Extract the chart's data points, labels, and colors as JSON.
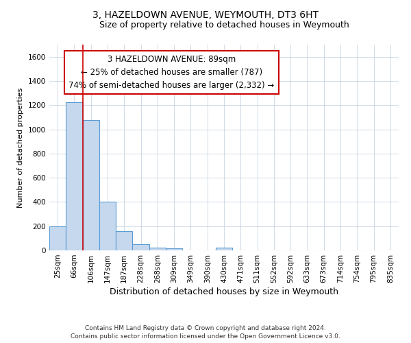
{
  "title": "3, HAZELDOWN AVENUE, WEYMOUTH, DT3 6HT",
  "subtitle": "Size of property relative to detached houses in Weymouth",
  "xlabel": "Distribution of detached houses by size in Weymouth",
  "ylabel": "Number of detached properties",
  "bar_color": "#c5d8ed",
  "bar_edge_color": "#5b9bd5",
  "grid_color": "#c8d4e3",
  "background_color": "#ffffff",
  "categories": [
    "25sqm",
    "66sqm",
    "106sqm",
    "147sqm",
    "187sqm",
    "228sqm",
    "268sqm",
    "309sqm",
    "349sqm",
    "390sqm",
    "430sqm",
    "471sqm",
    "511sqm",
    "552sqm",
    "592sqm",
    "633sqm",
    "673sqm",
    "714sqm",
    "754sqm",
    "795sqm",
    "835sqm"
  ],
  "values": [
    200,
    1225,
    1075,
    405,
    160,
    50,
    25,
    15,
    0,
    0,
    20,
    0,
    0,
    0,
    0,
    0,
    0,
    0,
    0,
    0,
    0
  ],
  "ylim": [
    0,
    1700
  ],
  "yticks": [
    0,
    200,
    400,
    600,
    800,
    1000,
    1200,
    1400,
    1600
  ],
  "property_label": "3 HAZELDOWN AVENUE: 89sqm",
  "annotation_line1": "← 25% of detached houses are smaller (787)",
  "annotation_line2": "74% of semi-detached houses are larger (2,332) →",
  "vline_x": 1.5,
  "vline_color": "#cc0000",
  "annotation_box_color": "#ffffff",
  "annotation_box_edge": "#cc0000",
  "footer_line1": "Contains HM Land Registry data © Crown copyright and database right 2024.",
  "footer_line2": "Contains public sector information licensed under the Open Government Licence v3.0.",
  "title_fontsize": 10,
  "subtitle_fontsize": 9,
  "xlabel_fontsize": 9,
  "ylabel_fontsize": 8,
  "tick_fontsize": 7.5,
  "annotation_fontsize": 8.5,
  "footer_fontsize": 6.5
}
